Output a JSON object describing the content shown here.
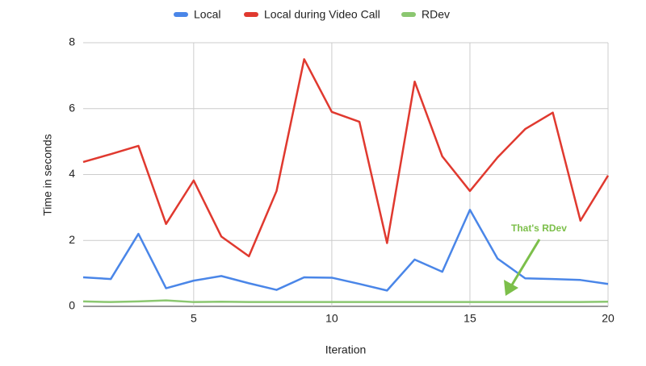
{
  "chart_data": {
    "type": "line",
    "x": [
      1,
      2,
      3,
      4,
      5,
      6,
      7,
      8,
      9,
      10,
      11,
      12,
      13,
      14,
      15,
      16,
      17,
      18,
      19,
      20
    ],
    "series": [
      {
        "name": "Local",
        "color": "#4a86e8",
        "values": [
          0.88,
          0.83,
          2.2,
          0.55,
          0.78,
          0.92,
          0.7,
          0.5,
          0.88,
          0.87,
          0.68,
          0.48,
          1.42,
          1.05,
          2.93,
          1.45,
          0.85,
          0.83,
          0.8,
          0.68
        ]
      },
      {
        "name": "Local during Video Call",
        "color": "#e0392f",
        "values": [
          4.38,
          4.62,
          4.87,
          2.5,
          3.82,
          2.12,
          1.52,
          3.5,
          7.5,
          5.9,
          5.6,
          1.92,
          6.82,
          4.55,
          3.5,
          4.52,
          5.38,
          5.88,
          2.6,
          3.97
        ]
      },
      {
        "name": "RDev",
        "color": "#8bc770",
        "values": [
          0.15,
          0.13,
          0.15,
          0.18,
          0.13,
          0.14,
          0.13,
          0.13,
          0.13,
          0.13,
          0.13,
          0.13,
          0.13,
          0.13,
          0.13,
          0.13,
          0.13,
          0.13,
          0.13,
          0.14
        ]
      }
    ],
    "xlabel": "Iteration",
    "ylabel": "Time in seconds",
    "xlim": [
      1,
      20
    ],
    "xticks": [
      5,
      10,
      15,
      20
    ],
    "ylim": [
      0,
      8
    ],
    "yticks": [
      0,
      2,
      4,
      6,
      8
    ],
    "grid": true,
    "legend": "top",
    "annotation": {
      "text": "That's RDev",
      "color": "#7cbf4a"
    }
  }
}
